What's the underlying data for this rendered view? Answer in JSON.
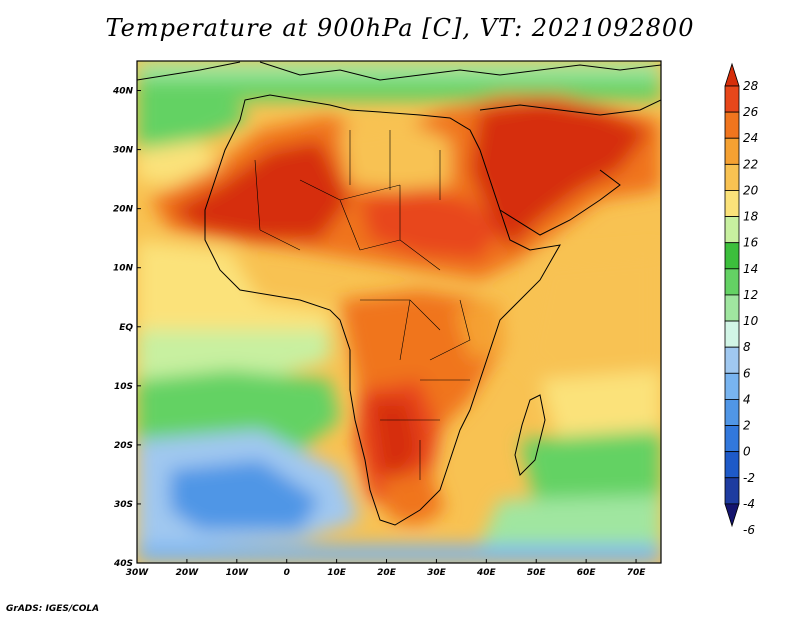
{
  "title": "Temperature at 900hPa [C], VT: 2021092800",
  "credit": "GrADS: IGES/COLA",
  "map": {
    "projection": "latlon",
    "lon_range": [
      -30,
      75
    ],
    "lat_range": [
      -40,
      45
    ],
    "lon_ticks": [
      "30W",
      "20W",
      "10W",
      "0",
      "10E",
      "20E",
      "30E",
      "40E",
      "50E",
      "60E",
      "70E"
    ],
    "lat_ticks": [
      "40S",
      "30S",
      "20S",
      "10S",
      "EQ",
      "10N",
      "20N",
      "30N",
      "40N"
    ]
  },
  "colorbar": {
    "labels": [
      "28",
      "26",
      "24",
      "22",
      "20",
      "18",
      "16",
      "14",
      "12",
      "10",
      "8",
      "6",
      "4",
      "2",
      "0",
      "-2",
      "-4",
      "-6"
    ],
    "colors": [
      "#d62e0a",
      "#e8471a",
      "#f0751e",
      "#f5a132",
      "#f8c252",
      "#fbe27a",
      "#c8f0a0",
      "#3cbf3c",
      "#64d264",
      "#a0e6a0",
      "#d2f5e6",
      "#a0c8f0",
      "#78b4f0",
      "#5096e6",
      "#3278dc",
      "#1e5ac8",
      "#1e3ca0",
      "#14146e"
    ]
  }
}
